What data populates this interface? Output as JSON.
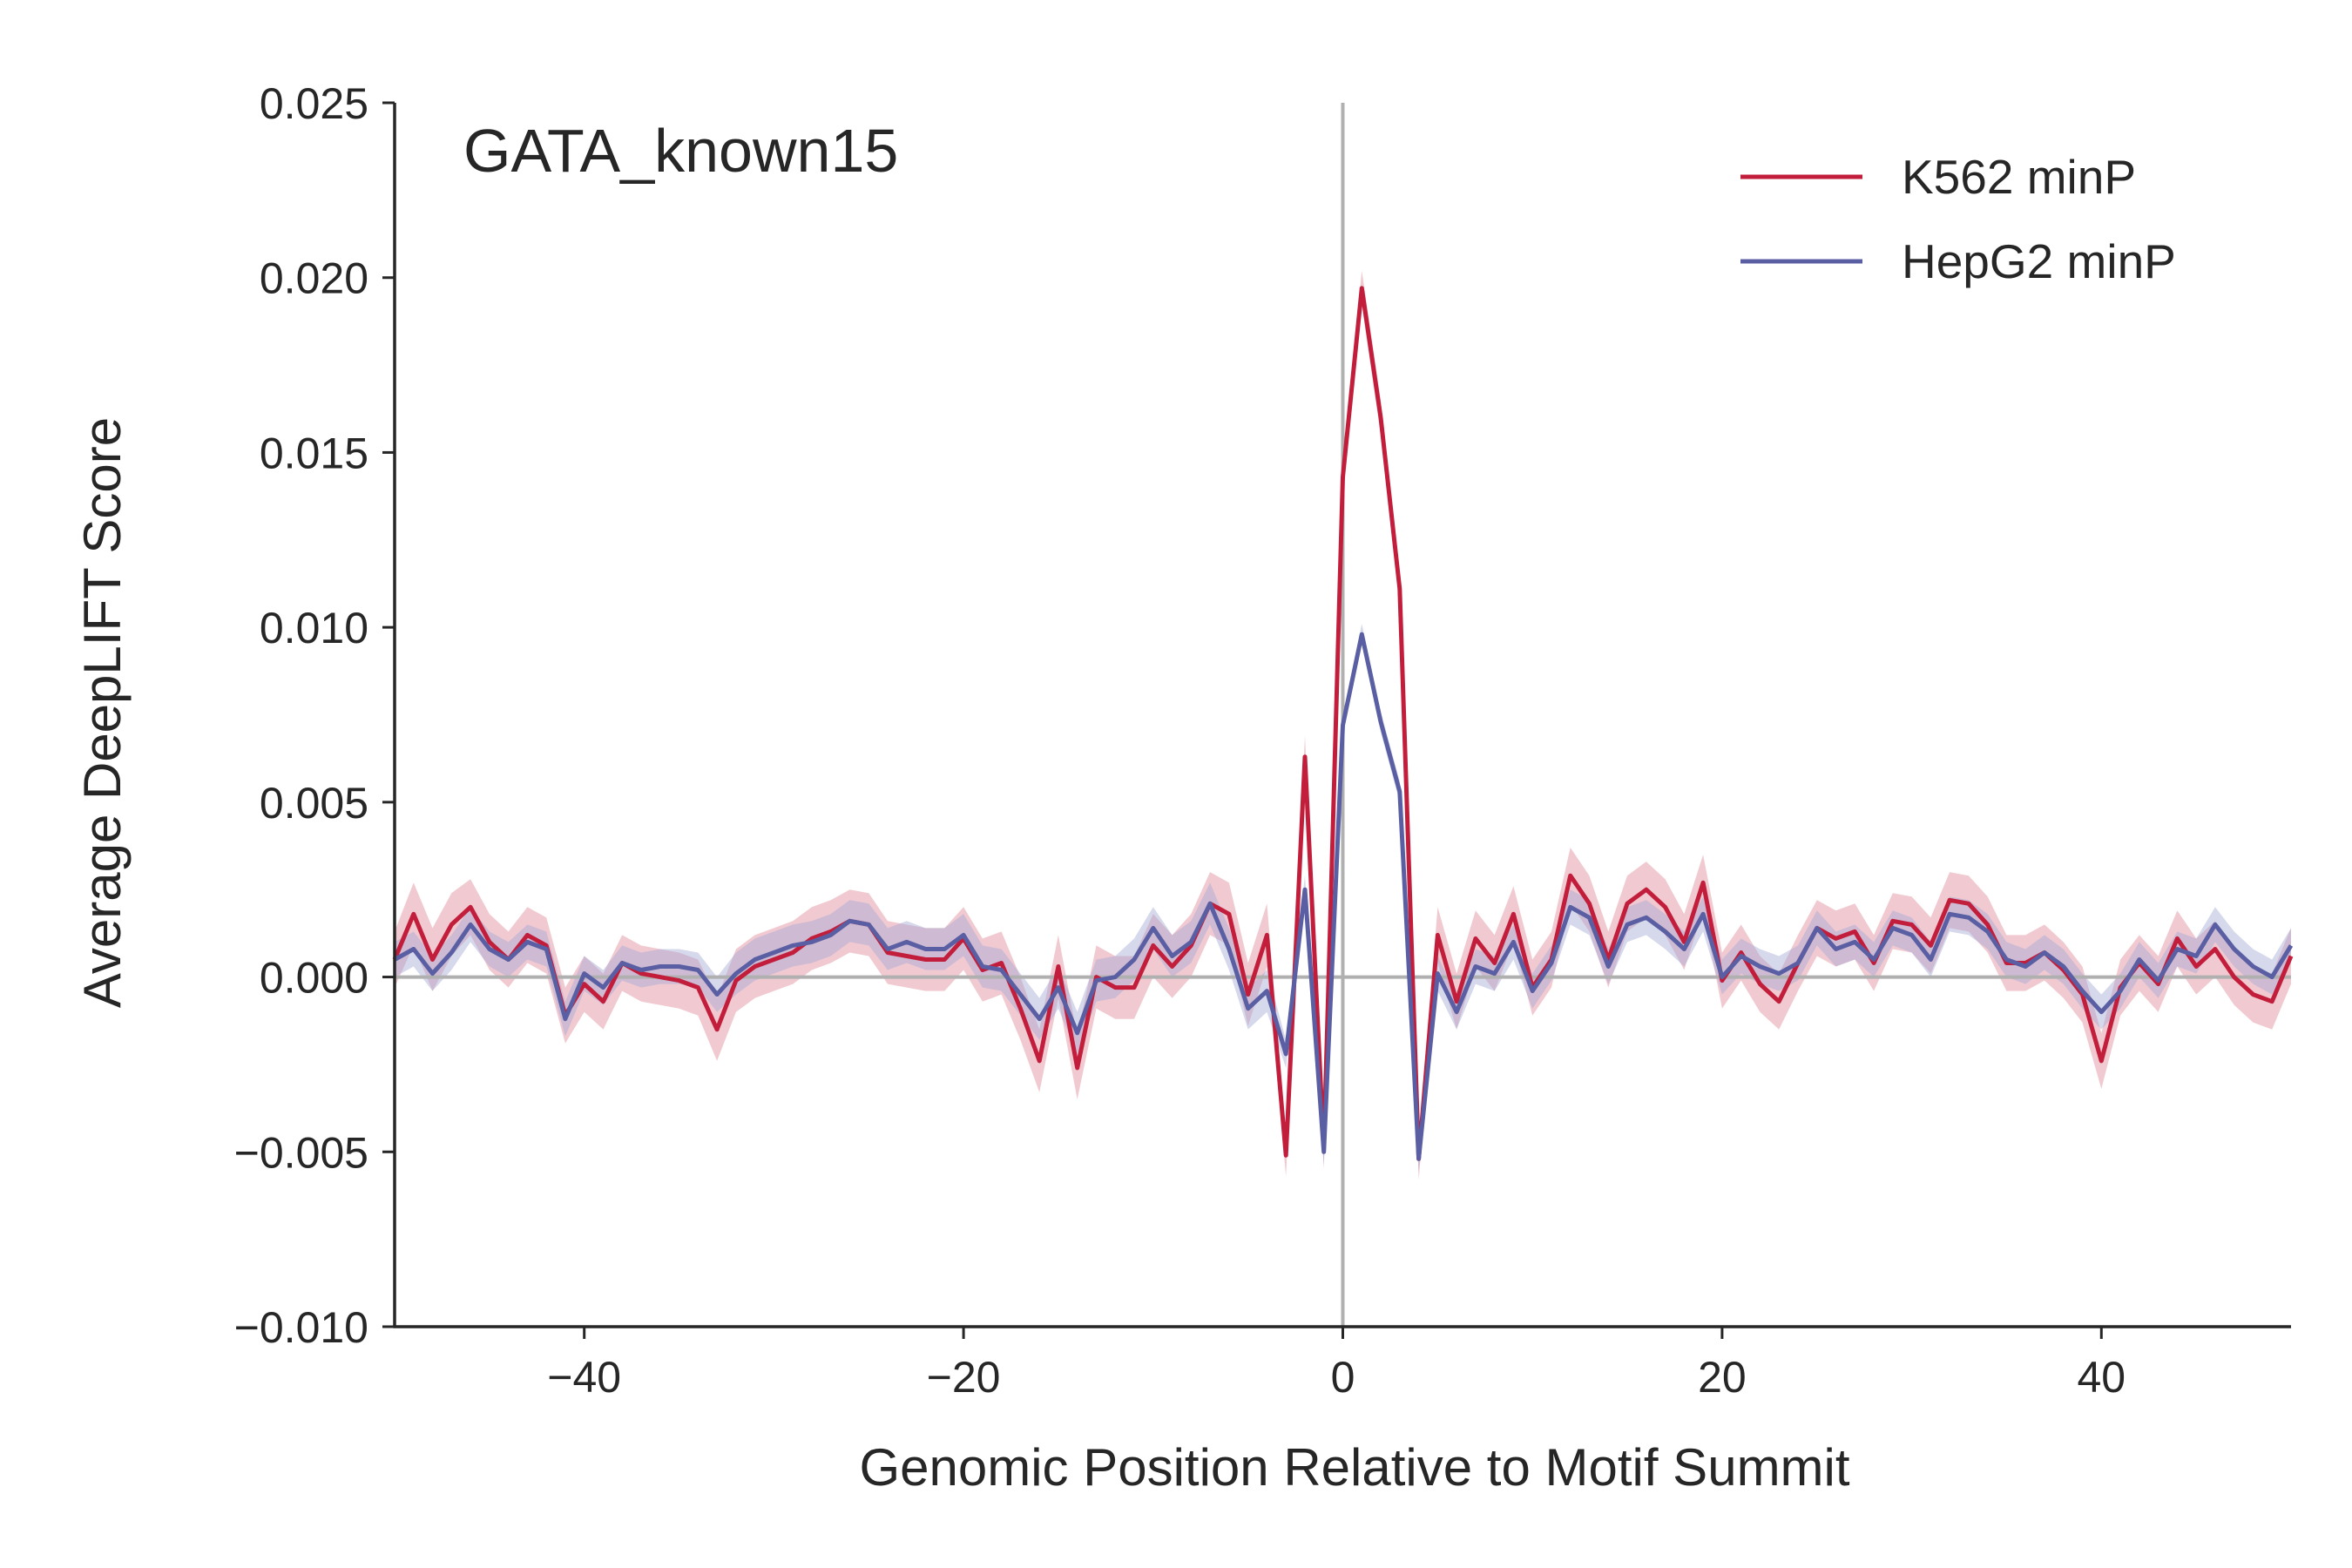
{
  "chart_data": {
    "type": "line",
    "title": "GATA_known15",
    "xlabel": "Genomic Position Relative to Motif Summit",
    "ylabel": "Average DeepLIFT Score",
    "xlim": [
      -50,
      50
    ],
    "ylim": [
      -0.01,
      0.025
    ],
    "xticks": [
      -40,
      -20,
      0,
      20,
      40
    ],
    "xtick_labels": [
      "−40",
      "−20",
      "0",
      "20",
      "40"
    ],
    "yticks": [
      -0.01,
      -0.005,
      0.0,
      0.005,
      0.01,
      0.015,
      0.02,
      0.025
    ],
    "ytick_labels": [
      "−0.010",
      "−0.005",
      "0.000",
      "0.005",
      "0.010",
      "0.015",
      "0.020",
      "0.025"
    ],
    "grid": false,
    "legend": "top-right",
    "reference_lines": {
      "vertical_x": 0,
      "horizontal_y": 0,
      "color": "#b0b0b0"
    },
    "x": [
      -50,
      -49,
      -48,
      -47,
      -46,
      -45,
      -44,
      -43,
      -42,
      -41,
      -40,
      -39,
      -38,
      -37,
      -36,
      -35,
      -34,
      -33,
      -32,
      -31,
      -30,
      -29,
      -28,
      -27,
      -26,
      -25,
      -24,
      -23,
      -22,
      -21,
      -20,
      -19,
      -18,
      -17,
      -16,
      -15,
      -14,
      -13,
      -12,
      -11,
      -10,
      -9,
      -8,
      -7,
      -6,
      -5,
      -4,
      -3,
      -2,
      -1,
      0,
      1,
      2,
      3,
      4,
      5,
      6,
      7,
      8,
      9,
      10,
      11,
      12,
      13,
      14,
      15,
      16,
      17,
      18,
      19,
      20,
      21,
      22,
      23,
      24,
      25,
      26,
      27,
      28,
      29,
      30,
      31,
      32,
      33,
      34,
      35,
      36,
      37,
      38,
      39,
      40,
      41,
      42,
      43,
      44,
      45,
      46,
      47,
      48,
      49,
      50
    ],
    "series": [
      {
        "name": "K562 minP",
        "color": "#c21e3c",
        "band_color": "#e08a98",
        "values": [
          0.0005,
          0.0018,
          0.0005,
          0.0015,
          0.002,
          0.001,
          0.0005,
          0.0012,
          0.0009,
          -0.0011,
          -0.0002,
          -0.0007,
          0.0004,
          0.0001,
          0.0,
          -0.0001,
          -0.0003,
          -0.0015,
          -0.0001,
          0.0003,
          0.0005,
          0.0007,
          0.0011,
          0.0013,
          0.0016,
          0.0015,
          0.0007,
          0.0006,
          0.0005,
          0.0005,
          0.0011,
          0.0002,
          0.0004,
          -0.0009,
          -0.0024,
          0.0003,
          -0.0026,
          0.0,
          -0.0003,
          -0.0003,
          0.0009,
          0.0003,
          0.0009,
          0.0021,
          0.0018,
          -0.0005,
          0.0012,
          -0.0051,
          0.0063,
          -0.0049,
          0.0143,
          0.0197,
          0.016,
          0.0111,
          -0.0052,
          0.0012,
          -0.0007,
          0.0011,
          0.0004,
          0.0018,
          -0.0003,
          0.0005,
          0.0029,
          0.0021,
          0.0005,
          0.0021,
          0.0025,
          0.002,
          0.001,
          0.0027,
          -0.0001,
          0.0007,
          -0.0002,
          -0.0007,
          0.0004,
          0.0014,
          0.0011,
          0.0013,
          0.0004,
          0.0016,
          0.0015,
          0.0009,
          0.0022,
          0.0021,
          0.0015,
          0.0004,
          0.0004,
          0.0007,
          0.0002,
          -0.0005,
          -0.0024,
          -0.0003,
          0.0004,
          -0.0002,
          0.0011,
          0.0003,
          0.0008,
          0.0,
          -0.0005,
          -0.0007,
          0.0006
        ],
        "band": [
          0.0008,
          0.0009,
          0.0009,
          0.0009,
          0.0008,
          0.0008,
          0.0008,
          0.0008,
          0.0008,
          0.0008,
          0.0008,
          0.0008,
          0.0008,
          0.0008,
          0.0008,
          0.0008,
          0.0008,
          0.0009,
          0.0009,
          0.0009,
          0.0009,
          0.0009,
          0.0009,
          0.0009,
          0.0009,
          0.0009,
          0.0009,
          0.0009,
          0.0009,
          0.0009,
          0.0009,
          0.0009,
          0.0009,
          0.0009,
          0.0009,
          0.0009,
          0.0009,
          0.0009,
          0.0009,
          0.0009,
          0.0009,
          0.0009,
          0.0009,
          0.0009,
          0.0009,
          0.0009,
          0.0009,
          0.0006,
          0.0006,
          0.0006,
          0.0005,
          0.0005,
          0.0005,
          0.0005,
          0.0006,
          0.0008,
          0.0008,
          0.0008,
          0.0008,
          0.0008,
          0.0008,
          0.0008,
          0.0008,
          0.0008,
          0.0008,
          0.0008,
          0.0008,
          0.0008,
          0.0008,
          0.0008,
          0.0008,
          0.0008,
          0.0008,
          0.0008,
          0.0008,
          0.0008,
          0.0008,
          0.0008,
          0.0008,
          0.0008,
          0.0008,
          0.0008,
          0.0008,
          0.0008,
          0.0008,
          0.0008,
          0.0008,
          0.0008,
          0.0008,
          0.0008,
          0.0008,
          0.0008,
          0.0008,
          0.0008,
          0.0008,
          0.0008,
          0.0008,
          0.0008,
          0.0008,
          0.0008,
          0.0008
        ]
      },
      {
        "name": "HepG2 minP",
        "color": "#5a5fa3",
        "band_color": "#a4a8d4",
        "values": [
          0.0005,
          0.0008,
          0.0001,
          0.0007,
          0.0015,
          0.0008,
          0.0005,
          0.001,
          0.0008,
          -0.0012,
          0.0001,
          -0.0003,
          0.0004,
          0.0002,
          0.0003,
          0.0003,
          0.0002,
          -0.0005,
          0.0001,
          0.0005,
          0.0007,
          0.0009,
          0.001,
          0.0012,
          0.0016,
          0.0015,
          0.0008,
          0.001,
          0.0008,
          0.0008,
          0.0012,
          0.0003,
          0.0002,
          -0.0005,
          -0.0012,
          -0.0003,
          -0.0016,
          -0.0001,
          0.0,
          0.0005,
          0.0014,
          0.0006,
          0.001,
          0.0021,
          0.0008,
          -0.0009,
          -0.0004,
          -0.0022,
          0.0025,
          -0.005,
          0.0072,
          0.0098,
          0.0073,
          0.0053,
          -0.0052,
          0.0001,
          -0.001,
          0.0003,
          0.0001,
          0.001,
          -0.0004,
          0.0004,
          0.002,
          0.0017,
          0.0003,
          0.0015,
          0.0017,
          0.0013,
          0.0008,
          0.0018,
          0.0,
          0.0006,
          0.0003,
          0.0001,
          0.0004,
          0.0014,
          0.0008,
          0.001,
          0.0005,
          0.0014,
          0.0012,
          0.0005,
          0.0018,
          0.0017,
          0.0013,
          0.0005,
          0.0003,
          0.0007,
          0.0003,
          -0.0004,
          -0.001,
          -0.0004,
          0.0005,
          -0.0001,
          0.0008,
          0.0006,
          0.0015,
          0.0008,
          0.0003,
          0.0,
          0.0009
        ],
        "band": [
          0.0005,
          0.0005,
          0.0005,
          0.0005,
          0.0005,
          0.0005,
          0.0005,
          0.0005,
          0.0005,
          0.0005,
          0.0005,
          0.0005,
          0.0005,
          0.0005,
          0.0005,
          0.0005,
          0.0005,
          0.0005,
          0.0006,
          0.0006,
          0.0006,
          0.0006,
          0.0006,
          0.0006,
          0.0006,
          0.0006,
          0.0006,
          0.0006,
          0.0006,
          0.0006,
          0.0006,
          0.0006,
          0.0006,
          0.0006,
          0.0006,
          0.0006,
          0.0006,
          0.0006,
          0.0006,
          0.0006,
          0.0006,
          0.0006,
          0.0006,
          0.0006,
          0.0006,
          0.0006,
          0.0006,
          0.0004,
          0.0004,
          0.0004,
          0.0003,
          0.0003,
          0.0003,
          0.0003,
          0.0004,
          0.0005,
          0.0005,
          0.0005,
          0.0005,
          0.0005,
          0.0005,
          0.0005,
          0.0005,
          0.0005,
          0.0005,
          0.0005,
          0.0005,
          0.0005,
          0.0005,
          0.0005,
          0.0005,
          0.0005,
          0.0005,
          0.0005,
          0.0005,
          0.0005,
          0.0005,
          0.0005,
          0.0005,
          0.0005,
          0.0005,
          0.0005,
          0.0005,
          0.0005,
          0.0005,
          0.0005,
          0.0005,
          0.0005,
          0.0005,
          0.0005,
          0.0005,
          0.0005,
          0.0005,
          0.0005,
          0.0005,
          0.0005,
          0.0005,
          0.0005,
          0.0005,
          0.0005,
          0.0005
        ]
      }
    ]
  }
}
